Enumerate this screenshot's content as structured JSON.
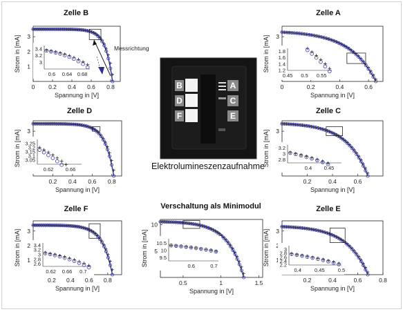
{
  "photo": {
    "caption": "Elektrolumineszenzaufnahme",
    "labels_left": [
      "B",
      "D",
      "F"
    ],
    "labels_right": [
      "A",
      "C",
      "E"
    ]
  },
  "colors": {
    "measured": "#222222",
    "model": "#2b2b99",
    "marker": "#3a3aa8"
  },
  "chart_data": [
    {
      "id": "B",
      "type": "line",
      "title": "Zelle B",
      "xlabel": "Spannung in [V]",
      "ylabel": "Strom in [mA]",
      "xlim": [
        0,
        0.9
      ],
      "ylim": [
        0,
        3.7
      ],
      "xticks": [
        0,
        0.2,
        0.4,
        0.6,
        0.8
      ],
      "yticks": [
        1,
        2,
        3
      ],
      "isc": 3.5,
      "voc": 0.82,
      "knee": 11,
      "zoom": {
        "xlim": [
          0.58,
          0.7
        ],
        "ylim": [
          2.8,
          3.5
        ],
        "xticks": [
          0.6,
          0.64,
          0.68
        ],
        "yticks": [
          3,
          3.2,
          3.4
        ]
      },
      "annotation": "Messrichtung",
      "series": [
        {
          "marker": "plus"
        },
        {
          "marker": "circle"
        }
      ]
    },
    {
      "id": "A",
      "type": "line",
      "title": "Zelle A",
      "xlabel": "Spannung in [V]",
      "ylabel": "Strom in [mA]",
      "xlim": [
        0,
        0.7
      ],
      "ylim": [
        0,
        3.7
      ],
      "xticks": [
        0,
        0.2,
        0.4,
        0.6
      ],
      "yticks": [
        1,
        2,
        3
      ],
      "isc": 3.3,
      "voc": 0.65,
      "knee": 3.6,
      "zoom": {
        "xlim": [
          0.45,
          0.58
        ],
        "ylim": [
          1.2,
          1.9
        ],
        "xticks": [
          0.45,
          0.5,
          0.55
        ],
        "yticks": [
          1.2,
          1.4,
          1.6,
          1.8
        ]
      },
      "series": [
        {
          "marker": "plus"
        },
        {
          "marker": "circle"
        }
      ]
    },
    {
      "id": "D",
      "type": "line",
      "title": "Zelle D",
      "xlabel": "Spannung in [V]",
      "ylabel": "Strom in [mA]",
      "xlim": [
        0,
        0.9
      ],
      "ylim": [
        0,
        3.7
      ],
      "xticks": [
        0.2,
        0.4,
        0.6,
        0.8
      ],
      "yticks": [
        1,
        2,
        3
      ],
      "isc": 3.5,
      "voc": 0.82,
      "knee": 9,
      "zoom": {
        "xlim": [
          0.6,
          0.68
        ],
        "ylim": [
          3.0,
          3.3
        ],
        "xticks": [
          0.62,
          0.66
        ],
        "yticks": [
          3.05,
          3.1,
          3.15,
          3.2,
          3.25
        ]
      },
      "series": [
        {
          "marker": "plus"
        },
        {
          "marker": "circle"
        }
      ]
    },
    {
      "id": "C",
      "type": "line",
      "title": "Zelle C",
      "xlabel": "Spannung in [V]",
      "ylabel": "Strom in [mA]",
      "xlim": [
        0,
        0.8
      ],
      "ylim": [
        0,
        3.7
      ],
      "xticks": [
        0.2,
        0.4,
        0.6
      ],
      "yticks": [
        1,
        2,
        3
      ],
      "isc": 3.5,
      "voc": 0.68,
      "knee": 4,
      "zoom": {
        "xlim": [
          0.35,
          0.48
        ],
        "ylim": [
          2.7,
          3.3
        ],
        "xticks": [
          0.4,
          0.45
        ],
        "yticks": [
          2.8,
          3,
          3.2
        ]
      },
      "series": [
        {
          "marker": "plus"
        },
        {
          "marker": "circle"
        }
      ]
    },
    {
      "id": "F",
      "type": "line",
      "title": "Zelle F",
      "xlabel": "Spannung in [V]",
      "ylabel": "Strom in [mA]",
      "xlim": [
        0,
        0.95
      ],
      "ylim": [
        0,
        3.7
      ],
      "xticks": [
        0.2,
        0.4,
        0.6,
        0.8
      ],
      "yticks": [
        1,
        2,
        3
      ],
      "isc": 3.4,
      "voc": 0.85,
      "knee": 8,
      "zoom": {
        "xlim": [
          0.6,
          0.72
        ],
        "ylim": [
          2.5,
          3.5
        ],
        "xticks": [
          0.62,
          0.66,
          0.7
        ],
        "yticks": [
          2.6,
          2.8,
          3,
          3.2,
          3.4
        ]
      },
      "series": [
        {
          "marker": "plus"
        },
        {
          "marker": "circle"
        }
      ]
    },
    {
      "id": "M",
      "type": "line",
      "title": "Verschaltung als Minimodul",
      "xlabel": "Spannung in [V]",
      "ylabel": "Strom in [mA]",
      "xlim": [
        0.2,
        1.55
      ],
      "ylim": [
        0,
        11
      ],
      "xticks": [
        0.5,
        1,
        1.5
      ],
      "yticks": [
        5,
        10
      ],
      "isc": 10.6,
      "voc": 1.3,
      "knee": 6,
      "zoom": {
        "xlim": [
          0.5,
          0.72
        ],
        "ylim": [
          9.3,
          10.8
        ],
        "xticks": [
          0.6,
          0.7
        ],
        "yticks": [
          9.5,
          10,
          10.5
        ]
      },
      "series": [
        {
          "marker": "plus"
        },
        {
          "marker": "circle"
        }
      ]
    },
    {
      "id": "E",
      "type": "line",
      "title": "Zelle E",
      "xlabel": "Spannung in [V]",
      "ylabel": "Strom in [mA]",
      "xlim": [
        0,
        0.8
      ],
      "ylim": [
        0,
        3.7
      ],
      "xticks": [
        0.2,
        0.4,
        0.6,
        0.8
      ],
      "yticks": [
        1,
        2,
        3
      ],
      "isc": 3.3,
      "voc": 0.68,
      "knee": 4,
      "zoom": {
        "xlim": [
          0.38,
          0.5
        ],
        "ylim": [
          2.2,
          3.2
        ],
        "xticks": [
          0.4,
          0.45,
          0.5
        ],
        "yticks": [
          2.2,
          2.4,
          2.6,
          2.8,
          3
        ]
      },
      "series": [
        {
          "marker": "plus"
        },
        {
          "marker": "circle"
        }
      ]
    }
  ]
}
